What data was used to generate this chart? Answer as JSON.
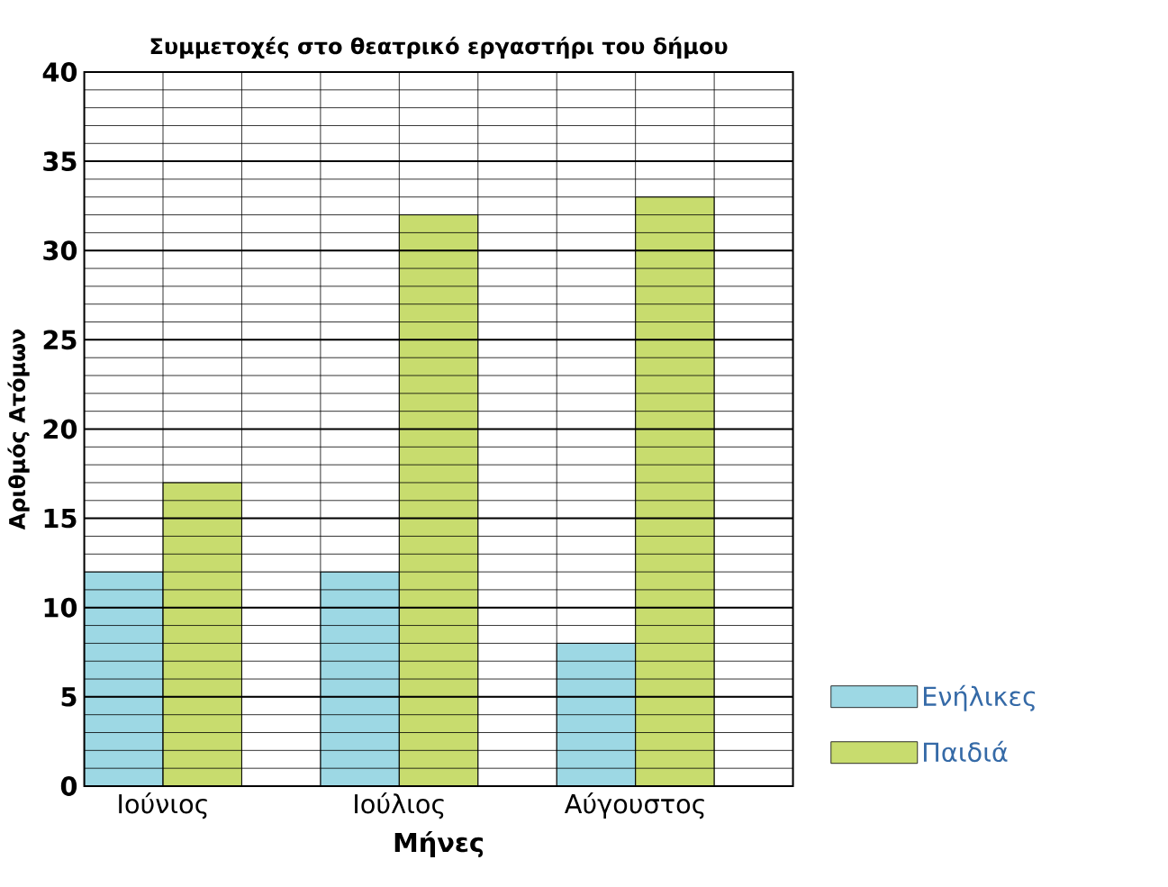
{
  "chart_data": {
    "type": "bar",
    "title": "Συμμετοχές στο θεατρικό εργαστήρι του δήμου",
    "xlabel": "Μήνες",
    "ylabel": "Αριθμός Ατόμων",
    "categories": [
      "Ιούνιος",
      "Ιούλιος",
      "Αύγουστος"
    ],
    "series": [
      {
        "name": "Ενήλικες",
        "color": "#9dd8e4",
        "values": [
          12,
          12,
          8
        ]
      },
      {
        "name": "Παιδιά",
        "color": "#c8dc6e",
        "values": [
          17,
          32,
          33
        ]
      }
    ],
    "ylim": [
      0,
      40
    ],
    "yticks": [
      0,
      5,
      10,
      15,
      20,
      25,
      30,
      35,
      40
    ],
    "grid": true,
    "legend": "right"
  }
}
